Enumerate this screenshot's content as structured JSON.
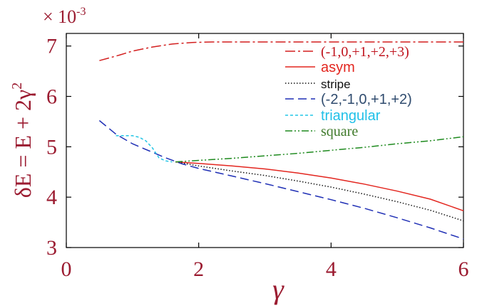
{
  "chart_data": {
    "type": "line",
    "multiplier_base": "× 10",
    "multiplier_exp": "-3",
    "ylabel_main": "δE = E + 2γ",
    "ylabel_sup": "2",
    "xlabel": "γ",
    "xlim": [
      0,
      6
    ],
    "ylim": [
      3,
      7.25
    ],
    "x_ticks": [
      0,
      2,
      4,
      6
    ],
    "y_ticks": [
      3,
      4,
      5,
      6,
      7
    ],
    "x_tick_labels": [
      "0",
      "2",
      "4",
      "6"
    ],
    "y_tick_labels": [
      "3",
      "4",
      "5",
      "6",
      "7"
    ],
    "grid": false,
    "legend_position": "top-right",
    "colors": {
      "axis_label": "#9b1b30",
      "tick_label": "#9b1b30"
    },
    "series": [
      {
        "name": "(-1,0,+1,+2,+3)",
        "color": "#d31f1f",
        "dash": "14 4 3 4",
        "label_color": "#c0141e",
        "x": [
          0.5,
          0.8,
          1.0,
          1.3,
          1.6,
          1.9,
          2.2,
          2.5,
          3.0,
          3.5,
          4.0,
          5.0,
          6.0
        ],
        "y": [
          6.71,
          6.82,
          6.9,
          6.98,
          7.04,
          7.07,
          7.08,
          7.08,
          7.08,
          7.08,
          7.08,
          7.08,
          7.08
        ]
      },
      {
        "name": "asym",
        "color": "#e3261f",
        "dash": "",
        "label_color": "#e3261f",
        "x": [
          1.65,
          2.0,
          2.5,
          3.0,
          3.5,
          4.0,
          4.5,
          5.0,
          5.5,
          6.0
        ],
        "y": [
          4.7,
          4.67,
          4.62,
          4.56,
          4.48,
          4.38,
          4.26,
          4.12,
          3.96,
          3.73
        ]
      },
      {
        "name": "stripe",
        "color": "#111111",
        "dash": "1.5 2.5",
        "label_color": "#111111",
        "x": [
          1.65,
          2.0,
          2.5,
          3.0,
          3.5,
          4.0,
          4.5,
          5.0,
          5.5,
          6.0
        ],
        "y": [
          4.7,
          4.62,
          4.52,
          4.43,
          4.32,
          4.2,
          4.06,
          3.91,
          3.74,
          3.53
        ]
      },
      {
        "name": "(-2,-1,0,+1,+2)",
        "color": "#1f2fb5",
        "dash": "12 6",
        "label_color": "#2f4b6e",
        "x": [
          0.5,
          0.75,
          1.0,
          1.25,
          1.5,
          1.75,
          2.0,
          2.5,
          3.0,
          3.5,
          4.0,
          4.5,
          5.0,
          5.5,
          6.0
        ],
        "y": [
          5.52,
          5.25,
          5.06,
          4.92,
          4.78,
          4.66,
          4.57,
          4.42,
          4.27,
          4.11,
          3.95,
          3.78,
          3.59,
          3.39,
          3.17
        ]
      },
      {
        "name": "triangular",
        "color": "#22c5e6",
        "dash": "4 3",
        "label_color": "#20c0e8",
        "x": [
          0.75,
          0.9,
          1.0,
          1.1,
          1.2,
          1.3,
          1.4,
          1.5,
          1.6
        ],
        "y": [
          5.22,
          5.22,
          5.22,
          5.19,
          5.12,
          4.98,
          4.78,
          4.72,
          4.7
        ]
      },
      {
        "name": "square",
        "color": "#1e8a1e",
        "dash": "10 3 2 3 2 3",
        "label_color": "#3f7a2a",
        "x": [
          1.65,
          2.0,
          2.5,
          3.0,
          3.5,
          4.0,
          4.5,
          5.0,
          5.5,
          6.0
        ],
        "y": [
          4.7,
          4.73,
          4.77,
          4.82,
          4.87,
          4.93,
          4.99,
          5.06,
          5.12,
          5.2
        ]
      }
    ]
  }
}
